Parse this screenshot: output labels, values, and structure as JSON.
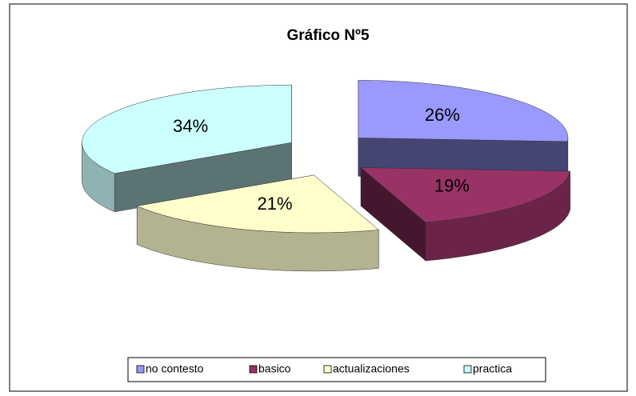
{
  "chart_data": {
    "type": "pie",
    "title": "Gráfico Nº5",
    "categories": [
      "no contesto",
      "basico",
      "actualizaciones",
      "practica"
    ],
    "values": [
      26,
      19,
      21,
      34
    ],
    "value_labels": [
      "26%",
      "19%",
      "21%",
      "34%"
    ],
    "colors": [
      "#9999ff",
      "#993366",
      "#ffffcc",
      "#ccffff"
    ],
    "legend": "bottom"
  }
}
